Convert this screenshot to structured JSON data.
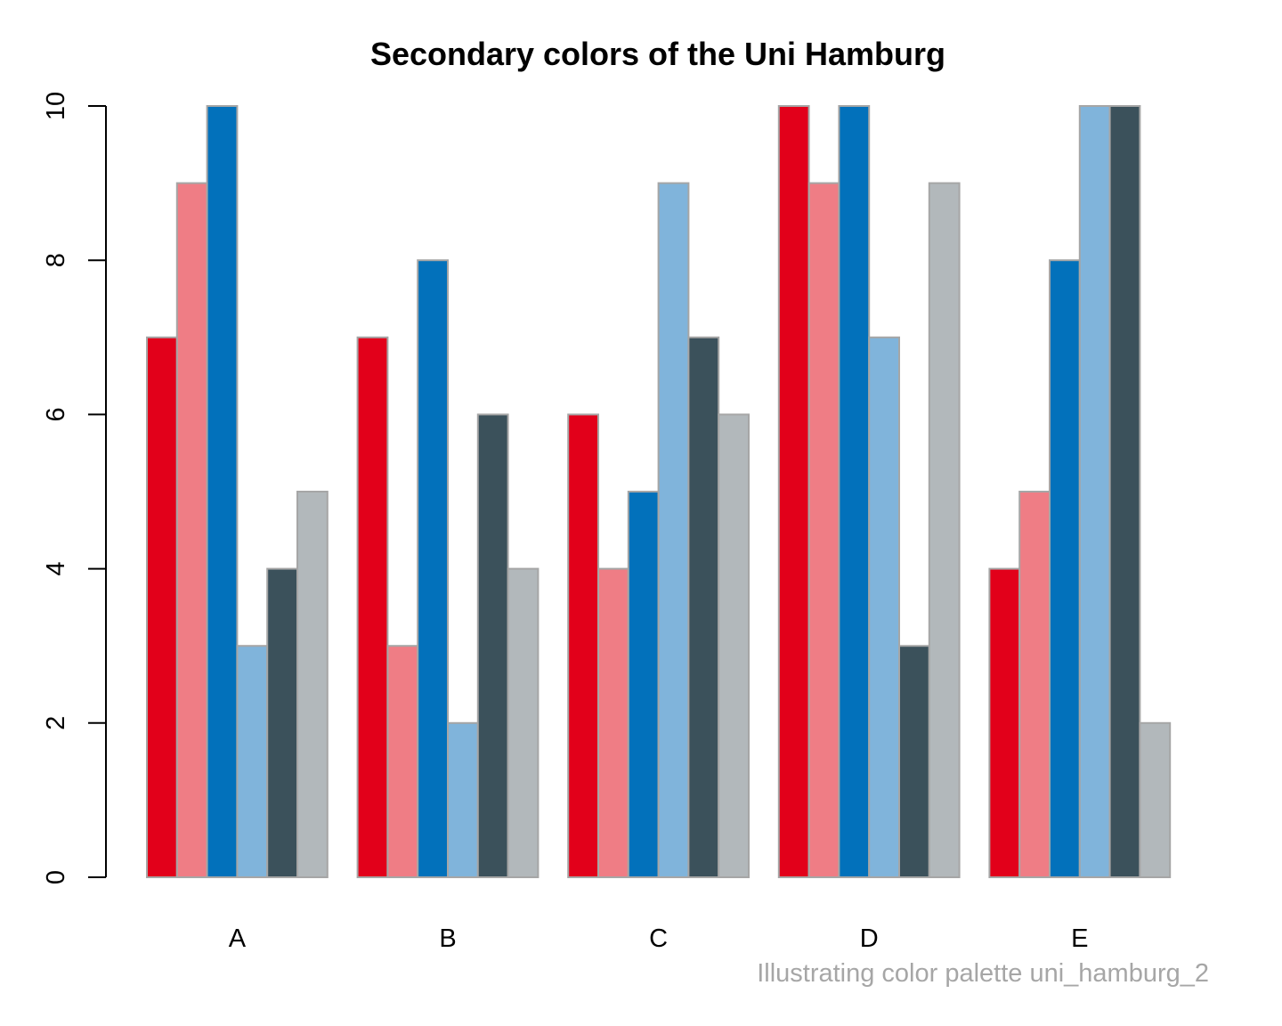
{
  "chart_data": {
    "type": "bar",
    "title": "Secondary colors of the Uni Hamburg",
    "caption": "Illustrating color palette uni_hamburg_2",
    "xlabel": "",
    "ylabel": "",
    "ylim": [
      0,
      10
    ],
    "yticks": [
      "0",
      "2",
      "4",
      "6",
      "8",
      "10"
    ],
    "categories": [
      "A",
      "B",
      "C",
      "D",
      "E"
    ],
    "grid": false,
    "legend": "none",
    "series": [
      {
        "color": "#e2001a",
        "values": [
          7,
          7,
          6,
          10,
          4
        ]
      },
      {
        "color": "#ef7d85",
        "values": [
          9,
          3,
          4,
          9,
          5
        ]
      },
      {
        "color": "#0271bb",
        "values": [
          10,
          8,
          5,
          10,
          8
        ]
      },
      {
        "color": "#80b4db",
        "values": [
          3,
          2,
          9,
          7,
          10
        ]
      },
      {
        "color": "#3b515b",
        "values": [
          4,
          6,
          7,
          3,
          10
        ]
      },
      {
        "color": "#b2b8bb",
        "values": [
          5,
          4,
          6,
          9,
          2
        ]
      }
    ],
    "bar_border_color": "#a6a6a6",
    "caption_color": "#a6a6a6"
  }
}
